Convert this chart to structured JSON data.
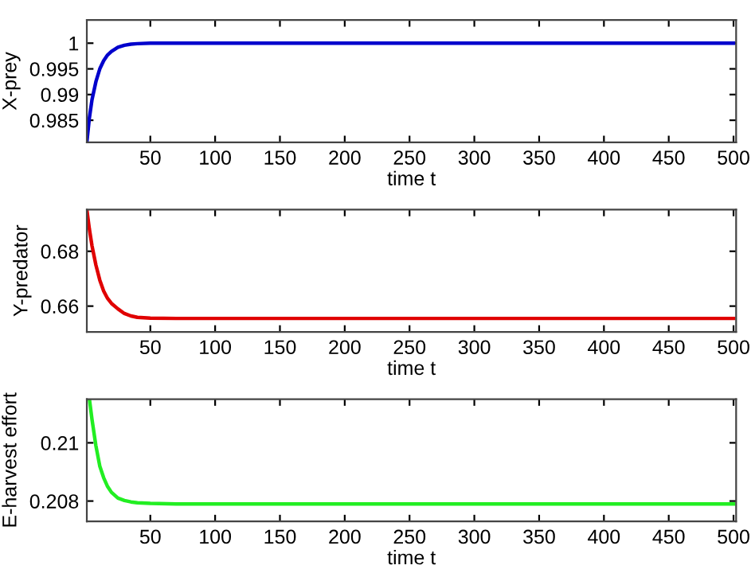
{
  "chart_data": [
    {
      "type": "line",
      "xlabel": "time t",
      "ylabel": "X-prey",
      "xlim": [
        1,
        502
      ],
      "ylim": [
        0.9807,
        1.0045
      ],
      "xticks": [
        50,
        100,
        150,
        200,
        250,
        300,
        350,
        400,
        450,
        500
      ],
      "yticks": [
        0.985,
        0.99,
        0.995,
        1
      ],
      "grid": false,
      "series": [
        {
          "color": "#0000cc",
          "x": [
            1,
            3,
            5,
            8,
            11,
            14,
            17,
            20,
            25,
            30,
            35,
            40,
            50,
            70,
            100,
            200,
            300,
            400,
            500
          ],
          "values": [
            0.9807,
            0.9855,
            0.989,
            0.9925,
            0.995,
            0.9966,
            0.9977,
            0.9984,
            0.9992,
            0.9996,
            0.9998,
            0.9999,
            1,
            1,
            1,
            1,
            1,
            1,
            1
          ]
        }
      ]
    },
    {
      "type": "line",
      "xlabel": "time t",
      "ylabel": "Y-predator",
      "xlim": [
        1,
        502
      ],
      "ylim": [
        0.6506,
        0.6952
      ],
      "xticks": [
        50,
        100,
        150,
        200,
        250,
        300,
        350,
        400,
        450,
        500
      ],
      "yticks": [
        0.66,
        0.68
      ],
      "grid": false,
      "series": [
        {
          "color": "#e00000",
          "x": [
            1,
            3,
            5,
            8,
            11,
            14,
            17,
            20,
            25,
            30,
            35,
            40,
            50,
            70,
            100,
            200,
            300,
            400,
            500
          ],
          "values": [
            0.6952,
            0.688,
            0.682,
            0.675,
            0.6695,
            0.6655,
            0.6628,
            0.661,
            0.659,
            0.6573,
            0.6564,
            0.6559,
            0.6556,
            0.6555,
            0.6555,
            0.6555,
            0.6555,
            0.6555,
            0.6555
          ]
        }
      ]
    },
    {
      "type": "line",
      "xlabel": "time t",
      "ylabel": "E-harvest effort",
      "xlim": [
        1,
        502
      ],
      "ylim": [
        0.2073,
        0.2115
      ],
      "xticks": [
        50,
        100,
        150,
        200,
        250,
        300,
        350,
        400,
        450,
        500
      ],
      "yticks": [
        0.208,
        0.21
      ],
      "grid": false,
      "series": [
        {
          "color": "#22ee22",
          "x": [
            3,
            5,
            8,
            11,
            14,
            17,
            20,
            25,
            30,
            35,
            40,
            50,
            70,
            100,
            200,
            300,
            400,
            500
          ],
          "values": [
            0.2115,
            0.2108,
            0.2099,
            0.2092,
            0.2088,
            0.2085,
            0.2083,
            0.2081,
            0.20802,
            0.20797,
            0.20794,
            0.20792,
            0.2079,
            0.2079,
            0.2079,
            0.2079,
            0.2079,
            0.2079
          ]
        }
      ]
    }
  ]
}
